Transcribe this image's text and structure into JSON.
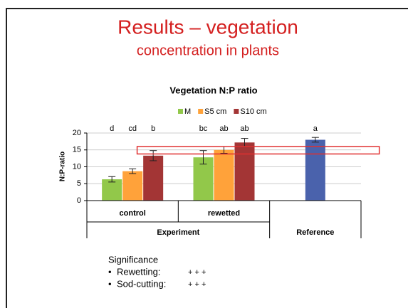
{
  "slide": {
    "title": "Results – vegetation",
    "subtitle": "concentration in plants",
    "significance": {
      "heading": "Significance",
      "items": [
        {
          "factor": "Rewetting:",
          "level": "+ + +"
        },
        {
          "factor": "Sod-cutting:",
          "level": "+ + +"
        }
      ]
    }
  },
  "chart_data": {
    "type": "bar",
    "title": "Vegetation N:P ratio",
    "ylabel": "N:P-ratio",
    "categories": [
      "control",
      "rewetted",
      null
    ],
    "groups": [
      {
        "label": "Experiment",
        "span": 2
      },
      {
        "label": "Reference",
        "span": 1
      }
    ],
    "series": [
      {
        "name": "M",
        "color": "#92c84a",
        "values": [
          6.3,
          12.8,
          null
        ],
        "errors": [
          0.8,
          2.0,
          null
        ],
        "letters": [
          "d",
          "bc",
          null
        ]
      },
      {
        "name": "S5 cm",
        "color": "#ffa23a",
        "values": [
          8.7,
          15.0,
          null
        ],
        "errors": [
          0.7,
          1.0,
          null
        ],
        "letters": [
          "cd",
          "ab",
          null
        ]
      },
      {
        "name": "S10 cm",
        "color": "#a33535",
        "values": [
          13.3,
          17.2,
          null
        ],
        "errors": [
          1.5,
          1.2,
          null
        ],
        "letters": [
          "b",
          "ab",
          null
        ]
      }
    ],
    "reference": {
      "value": 18.0,
      "error": 0.7,
      "letter": "a",
      "color": "#4a62ac"
    },
    "highlight_band": [
      13.8,
      16.0
    ],
    "highlight_color": "#e03030",
    "ylim": [
      0,
      20
    ],
    "yticks": [
      0,
      5,
      10,
      15,
      20
    ],
    "grid": true,
    "legend": "top"
  }
}
